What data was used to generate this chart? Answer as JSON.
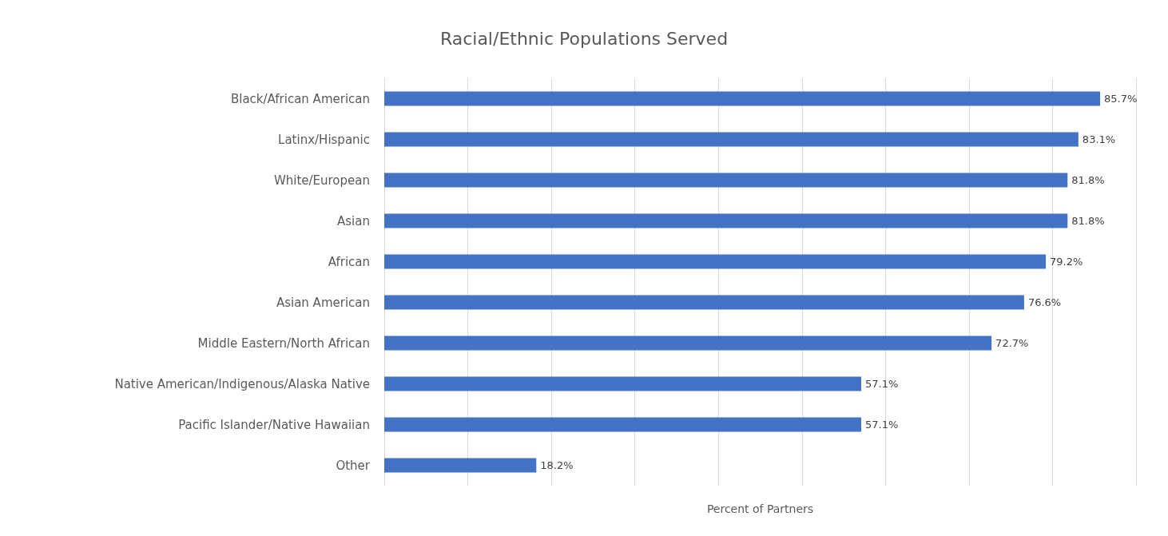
{
  "chart_data": {
    "type": "bar",
    "orientation": "horizontal",
    "title": "Racial/Ethnic Populations Served",
    "xlabel": "Percent of Partners",
    "categories": [
      "Black/African American",
      "Latinx/Hispanic",
      "White/European",
      "Asian",
      "African",
      "Asian American",
      "Middle Eastern/North African",
      "Native American/Indigenous/Alaska Native",
      "Pacific Islander/Native Hawaiian",
      "Other"
    ],
    "values": [
      85.7,
      83.1,
      81.8,
      81.8,
      79.2,
      76.6,
      72.7,
      57.1,
      57.1,
      18.2
    ],
    "value_labels": [
      "85.7%",
      "83.1%",
      "81.8%",
      "81.8%",
      "79.2%",
      "76.6%",
      "72.7%",
      "57.1%",
      "57.1%",
      "18.2%"
    ],
    "color": "#4472c4",
    "xlim": [
      0,
      90
    ],
    "xticks": [
      {
        "value": 0,
        "label": null
      },
      {
        "value": 10,
        "label": null
      },
      {
        "value": 20,
        "label": null
      },
      {
        "value": 30,
        "label": null
      },
      {
        "value": 40,
        "label": null
      },
      {
        "value": 50,
        "label": null
      },
      {
        "value": 60,
        "label": null
      },
      {
        "value": 70,
        "label": null
      },
      {
        "value": 80,
        "label": null
      },
      {
        "value": 90,
        "label": null
      }
    ],
    "grid": "x",
    "tick_labels": "y"
  }
}
